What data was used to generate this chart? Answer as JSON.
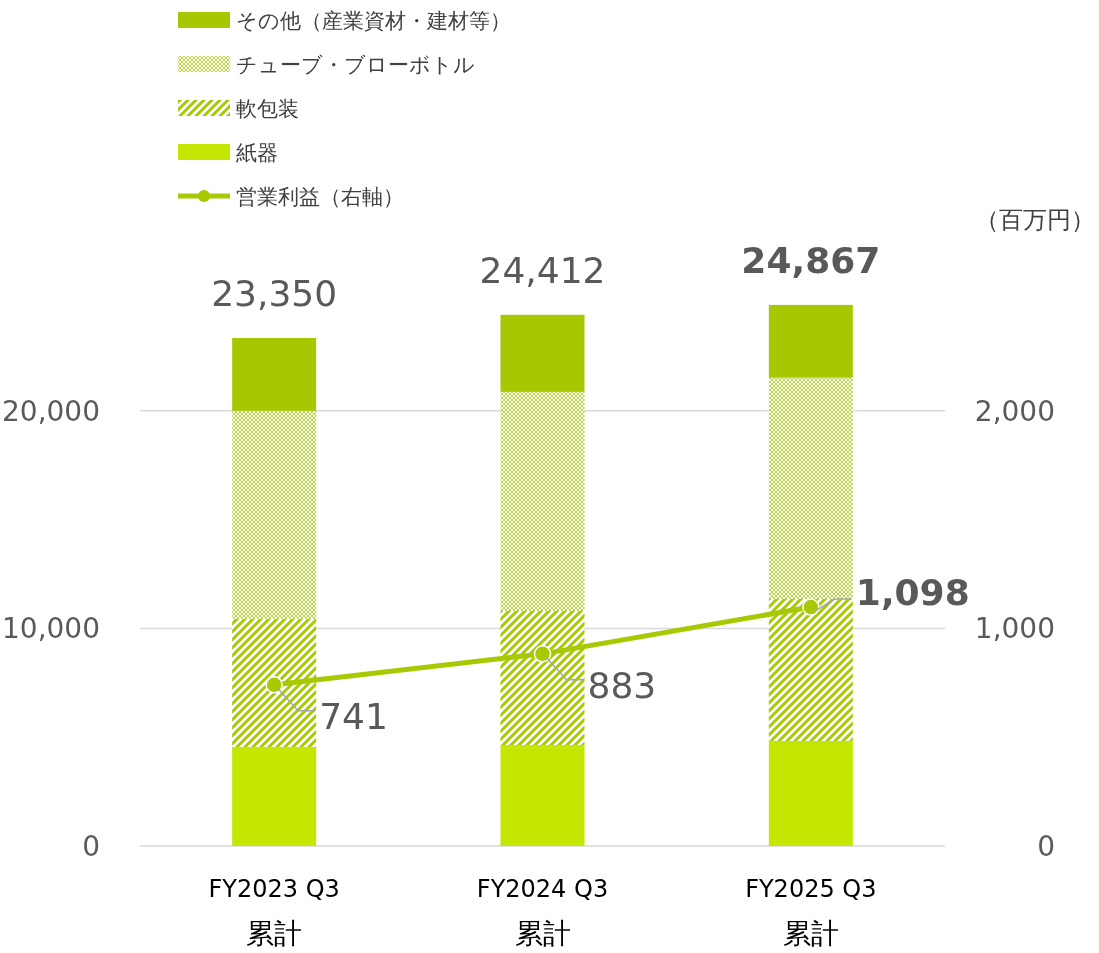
{
  "chart_data": {
    "type": "bar",
    "stacked": true,
    "y2label": "（百万円）",
    "categories": [
      "FY2023 Q3\n累計",
      "FY2024 Q3\n累計",
      "FY2025 Q3\n累計"
    ],
    "series": [
      {
        "name": "紙器",
        "color": "#c5e600",
        "values": [
          4550,
          4640,
          4830
        ]
      },
      {
        "name": "軟包装",
        "color": "#a8c800",
        "values": [
          5890,
          6160,
          6530
        ]
      },
      {
        "name": "チューブ・ブローボトル",
        "color": "#b8d840",
        "values": [
          9560,
          10070,
          10160
        ]
      },
      {
        "name": "その他（産業資材・建材等）",
        "color": "#a5c800",
        "values": [
          3350,
          3542,
          3347
        ]
      },
      {
        "name": "営業利益（右軸）",
        "type": "line",
        "axis": "y2",
        "color": "#a8c800",
        "marker": "circle",
        "values": [
          741,
          883,
          1098
        ],
        "value_labels": [
          "741",
          "883",
          "1,098"
        ]
      }
    ],
    "totals": [
      "23,350",
      "24,412",
      "24,867"
    ],
    "ylim": [
      0,
      25000
    ],
    "yticks": [
      0,
      {
        "value": 10000,
        "label": "10,000"
      },
      {
        "value": 20000,
        "label": "20,000"
      }
    ],
    "y2lim": [
      0,
      2500
    ],
    "y2ticks": [
      0,
      {
        "value": 1000,
        "label": "1,000"
      },
      {
        "value": 2000,
        "label": "2,000"
      }
    ],
    "grid": "y",
    "legend": "top left"
  }
}
